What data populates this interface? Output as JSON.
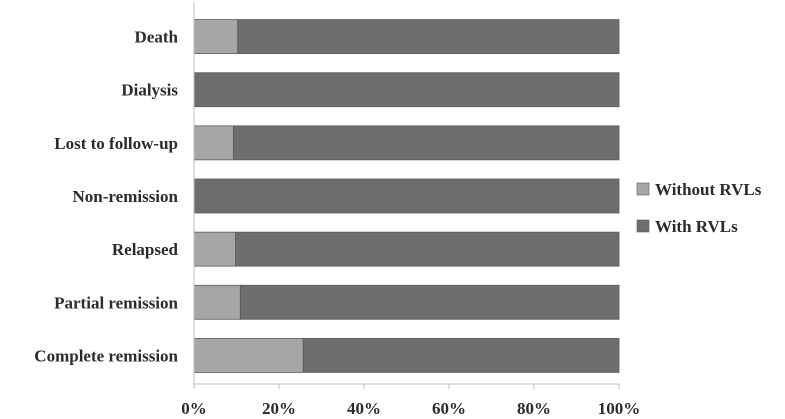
{
  "chart_data": {
    "type": "bar",
    "orientation": "horizontal",
    "stacked": "percent",
    "categories": [
      "Death",
      "Dialysis",
      "Lost to follow-up",
      "Non-remission",
      "Relapsed",
      "Partial remission",
      "Complete remission"
    ],
    "series": [
      {
        "name": "Without RVLs",
        "values": [
          10.3,
          0,
          9.3,
          0,
          9.8,
          10.9,
          25.7
        ],
        "color": "#a6a6a6"
      },
      {
        "name": "With RVLs",
        "values": [
          89.7,
          100,
          90.7,
          100,
          90.2,
          89.1,
          74.3
        ],
        "color": "#6e6e6e"
      }
    ],
    "x_ticks": [
      "0%",
      "20%",
      "40%",
      "60%",
      "80%",
      "100%"
    ],
    "xlim": [
      0,
      100
    ],
    "legend_position": "right",
    "grid": false
  }
}
